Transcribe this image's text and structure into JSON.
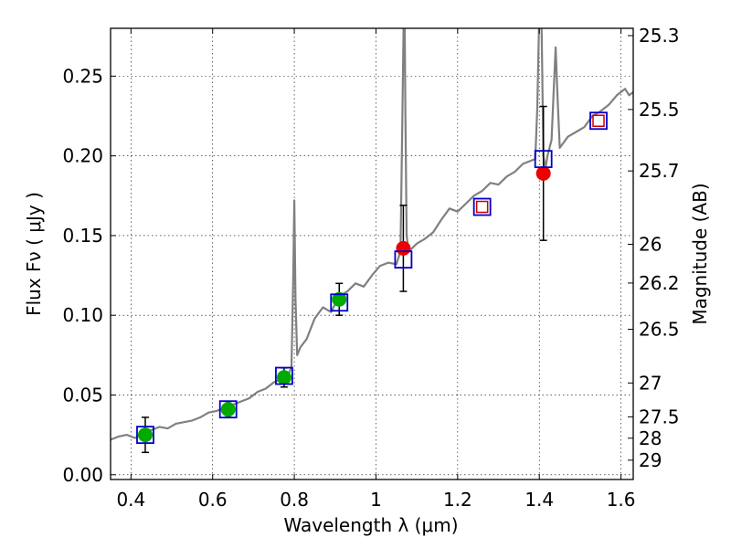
{
  "chart_data": {
    "type": "scatter",
    "xlabel": "Wavelength  λ (μm)",
    "ylabel": "Flux  Fν  ( μJy )",
    "ylabel_right": "Magnitude (AB)",
    "xlim": [
      0.35,
      1.63
    ],
    "ylim": [
      -0.003,
      0.28
    ],
    "grid": true,
    "x_ticks": [
      0.4,
      0.6,
      0.8,
      1.0,
      1.2,
      1.4,
      1.6
    ],
    "x_tick_labels": [
      "0.4",
      "0.6",
      "0.8",
      "1",
      "1.2",
      "1.4",
      "1.6"
    ],
    "y_ticks": [
      0.0,
      0.05,
      0.1,
      0.15,
      0.2,
      0.25
    ],
    "y_tick_labels": [
      "0.00",
      "0.05",
      "0.10",
      "0.15",
      "0.20",
      "0.25"
    ],
    "mag_ticks": [
      25.3,
      25.5,
      25.7,
      26,
      26.2,
      26.5,
      27,
      27.5,
      28,
      29
    ],
    "mag_tick_labels": [
      "25.3",
      "25.5",
      "25.7",
      "26",
      "26.2",
      "26.5",
      "27",
      "27.5",
      "28",
      "29"
    ],
    "spectrum": {
      "color": "#808080",
      "x": [
        0.35,
        0.37,
        0.39,
        0.41,
        0.43,
        0.45,
        0.47,
        0.49,
        0.51,
        0.53,
        0.55,
        0.57,
        0.59,
        0.61,
        0.63,
        0.65,
        0.67,
        0.69,
        0.71,
        0.73,
        0.75,
        0.77,
        0.785,
        0.793,
        0.797,
        0.8,
        0.803,
        0.807,
        0.815,
        0.83,
        0.85,
        0.87,
        0.89,
        0.91,
        0.93,
        0.95,
        0.97,
        0.99,
        1.01,
        1.03,
        1.05,
        1.06,
        1.065,
        1.068,
        1.07,
        1.072,
        1.075,
        1.08,
        1.1,
        1.12,
        1.14,
        1.16,
        1.18,
        1.2,
        1.22,
        1.24,
        1.26,
        1.28,
        1.3,
        1.32,
        1.34,
        1.36,
        1.38,
        1.39,
        1.395,
        1.4,
        1.405,
        1.41,
        1.415,
        1.42,
        1.43,
        1.435,
        1.44,
        1.445,
        1.45,
        1.47,
        1.49,
        1.51,
        1.53,
        1.55,
        1.57,
        1.59,
        1.61,
        1.62,
        1.63
      ],
      "y": [
        0.022,
        0.024,
        0.025,
        0.023,
        0.026,
        0.028,
        0.03,
        0.029,
        0.032,
        0.033,
        0.034,
        0.036,
        0.039,
        0.04,
        0.042,
        0.044,
        0.046,
        0.048,
        0.052,
        0.054,
        0.058,
        0.06,
        0.062,
        0.068,
        0.12,
        0.172,
        0.11,
        0.075,
        0.08,
        0.085,
        0.098,
        0.105,
        0.102,
        0.112,
        0.115,
        0.12,
        0.118,
        0.125,
        0.131,
        0.133,
        0.132,
        0.14,
        0.23,
        0.29,
        0.29,
        0.23,
        0.15,
        0.14,
        0.145,
        0.148,
        0.152,
        0.16,
        0.167,
        0.165,
        0.17,
        0.175,
        0.178,
        0.183,
        0.182,
        0.187,
        0.19,
        0.195,
        0.197,
        0.198,
        0.23,
        0.29,
        0.29,
        0.2,
        0.192,
        0.2,
        0.21,
        0.24,
        0.268,
        0.235,
        0.205,
        0.212,
        0.215,
        0.218,
        0.225,
        0.228,
        0.232,
        0.238,
        0.242,
        0.238,
        0.24
      ]
    },
    "model_squares": {
      "color": "#0000cc",
      "x": [
        0.435,
        0.638,
        0.775,
        0.91,
        1.067,
        1.26,
        1.41,
        1.545
      ],
      "y": [
        0.025,
        0.041,
        0.062,
        0.108,
        0.135,
        0.168,
        0.198,
        0.222
      ]
    },
    "observed_detections": {
      "color": "#00aa00",
      "x": [
        0.435,
        0.638,
        0.775,
        0.91
      ],
      "y": [
        0.025,
        0.041,
        0.061,
        0.11
      ],
      "err": [
        0.011,
        0.005,
        0.006,
        0.01
      ]
    },
    "observed_nir": {
      "color": "#ee0000",
      "x": [
        1.067,
        1.41
      ],
      "y": [
        0.142,
        0.189
      ],
      "err": [
        0.027,
        0.042
      ]
    },
    "predicted_open": {
      "color": "#cc0000",
      "x": [
        1.26,
        1.545
      ],
      "y": [
        0.168,
        0.222
      ]
    }
  }
}
